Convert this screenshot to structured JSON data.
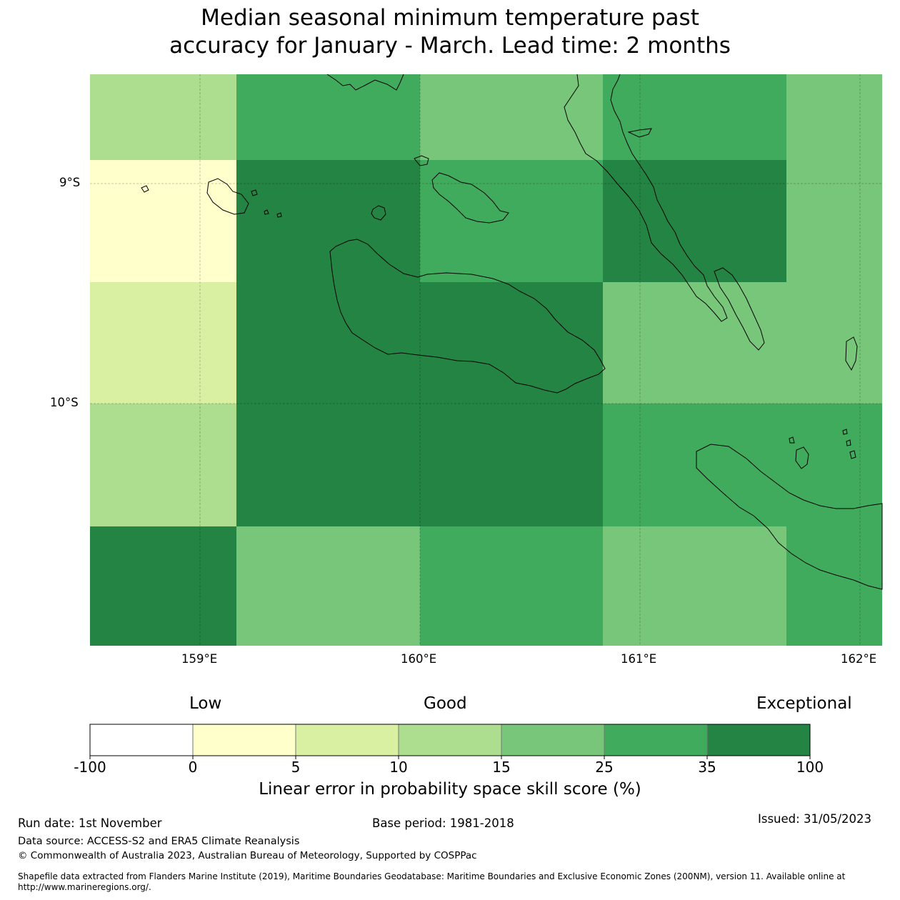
{
  "title": {
    "line1": "Median seasonal minimum temperature past",
    "line2": "accuracy for January - March. Lead time: 2 months"
  },
  "map": {
    "lat_labels": [
      "9°S",
      "10°S"
    ],
    "lon_labels": [
      "159°E",
      "160°E",
      "161°E",
      "162°E"
    ],
    "grid_rows": [
      [
        3,
        5,
        4,
        5,
        4
      ],
      [
        1,
        6,
        5,
        6,
        4
      ],
      [
        2,
        6,
        6,
        4,
        4
      ],
      [
        3,
        6,
        6,
        5,
        5
      ],
      [
        6,
        4,
        5,
        4,
        5
      ]
    ],
    "grid_row_labels": [
      "top row",
      "row 2",
      "row 3",
      "row 4",
      "bottom row"
    ]
  },
  "legend": {
    "category_low": "Low",
    "category_good": "Good",
    "category_exceptional": "Exceptional",
    "colors": [
      "#ffffff",
      "#ffffcc",
      "#d9f0a3",
      "#addd8e",
      "#78c679",
      "#41ab5d",
      "#238443"
    ],
    "ticks": [
      "-100",
      "0",
      "5",
      "10",
      "15",
      "25",
      "35",
      "100"
    ],
    "title": "Linear error in probability space skill score (%)"
  },
  "footer": {
    "run_date": "Run date: 1st November",
    "base_period": "Base period: 1981-2018",
    "issued": "Issued: 31/05/2023",
    "data_source": "Data source: ACCESS-S2 and ERA5 Climate Reanalysis",
    "copyright": "© Commonwealth of Australia 2023, Australian Bureau of Meteorology, Supported by COSPPac",
    "shapefile": "Shapefile data extracted from Flanders Marine Institute (2019), Maritime Boundaries Geodatabase: Maritime Boundaries and Exclusive Economic Zones (200NM), version 11. Available online at http://www.marineregions.org/."
  }
}
